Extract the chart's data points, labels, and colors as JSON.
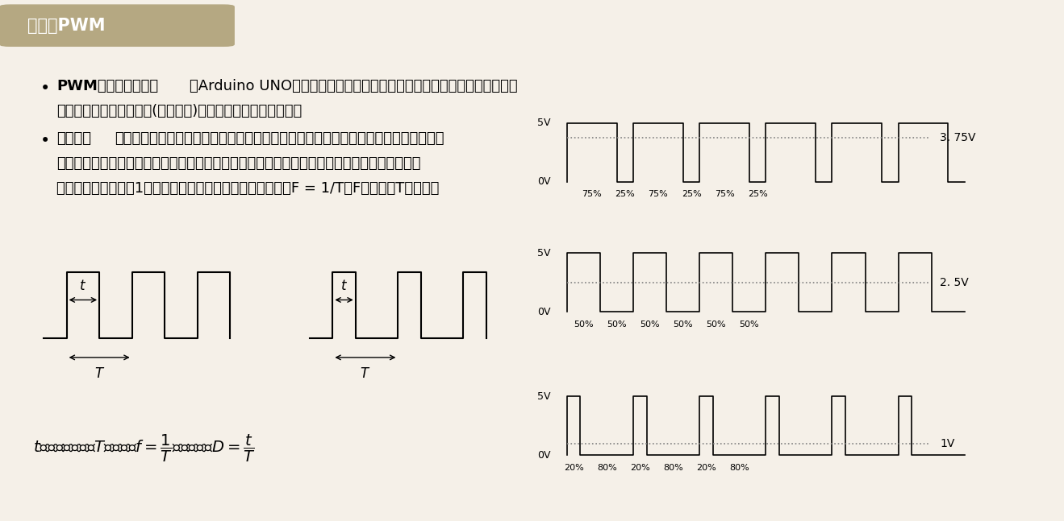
{
  "bg_color": "#f5f0e8",
  "title_bg": "#b5a882",
  "title_text": "什么是PWM",
  "title_color": "#ffffff",
  "bullet1_bold": "PWM即脉冲宽度调制",
  "bullet1_rest1": "，Arduino UNO并不能产生真正的模拟量输出，它是通过调制一定脉冲周期",
  "bullet1_rest2": "内高电平保持时间的占比(方波信号)来输出一种接近模拟量的量",
  "bullet2_bold": "脉冲信号",
  "bullet2_rest1": "：脉冲信号是按一定电压幅度，一定时间间隔连续发出。脉冲信号之间的时间间隔称为",
  "bullet2_rest2": "周期；即凡具有不连续波形的信号都是脉冲信号，广义上讲，非正弦波形的信号都是脉冲信号，",
  "bullet2_rest3": "而将在单位时间（如1秒）内所产生的脉冲个数称为频率。即F = 1/T（F是频率，T是周期）",
  "signal_75_label": "3. 75V",
  "signal_50_label": "2. 5V",
  "signal_20_label": "1V",
  "signal_75_duty": 0.75,
  "signal_50_duty": 0.5,
  "signal_20_duty": 0.2,
  "signal_75_avg": 0.75,
  "signal_50_avg": 0.5,
  "signal_20_avg": 0.2,
  "pwm_labels_75": [
    "75%",
    "25%",
    "75%",
    "25%",
    "75%",
    "25%"
  ],
  "pwm_labels_50": [
    "50%",
    "50%",
    "50%",
    "50%",
    "50%",
    "50%"
  ],
  "pwm_labels_20": [
    "20%",
    "80%",
    "20%",
    "80%",
    "20%",
    "80%"
  ]
}
